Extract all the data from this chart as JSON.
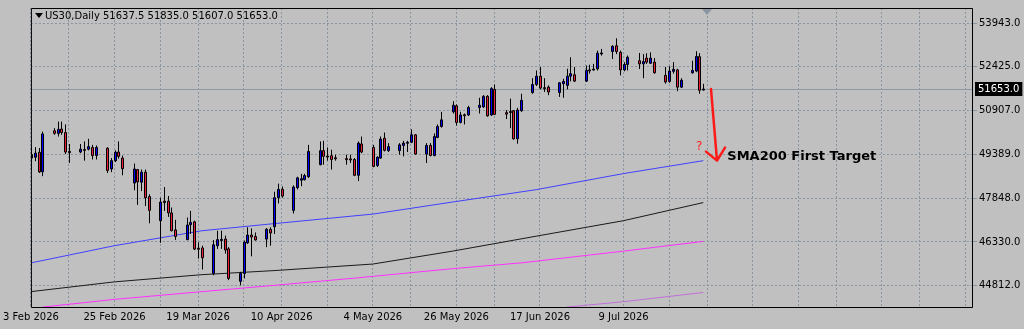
{
  "chart_data": {
    "type": "candlestick",
    "title": "US30,Daily 51637.5 51835.0 51607.0 51653.0",
    "x": [
      "2026-02-03",
      "2026-02-04",
      "2026-02-05",
      "2026-02-06",
      "2026-02-09",
      "2026-02-10",
      "2026-02-11",
      "2026-02-12",
      "2026-02-13",
      "2026-02-16",
      "2026-02-17",
      "2026-02-18",
      "2026-02-19",
      "2026-02-20",
      "2026-02-23",
      "2026-02-24",
      "2026-02-25",
      "2026-02-26",
      "2026-02-27",
      "2026-03-02",
      "2026-03-03",
      "2026-03-04",
      "2026-03-05",
      "2026-03-06",
      "2026-03-09",
      "2026-03-10",
      "2026-03-11",
      "2026-03-12",
      "2026-03-13",
      "2026-03-16",
      "2026-03-17",
      "2026-03-18",
      "2026-03-19",
      "2026-03-20",
      "2026-03-23",
      "2026-03-24",
      "2026-03-25",
      "2026-03-26",
      "2026-03-27",
      "2026-03-30",
      "2026-03-31",
      "2026-04-01",
      "2026-04-02",
      "2026-04-03",
      "2026-04-06",
      "2026-04-07",
      "2026-04-08",
      "2026-04-09",
      "2026-04-10",
      "2026-04-13",
      "2026-04-14",
      "2026-04-15",
      "2026-04-16",
      "2026-04-17",
      "2026-04-20",
      "2026-04-21",
      "2026-04-22",
      "2026-04-23",
      "2026-04-24",
      "2026-04-27",
      "2026-04-28",
      "2026-04-29",
      "2026-04-30",
      "2026-05-01",
      "2026-05-04",
      "2026-05-05",
      "2026-05-06",
      "2026-05-07",
      "2026-05-08",
      "2026-05-11",
      "2026-05-12",
      "2026-05-13",
      "2026-05-14",
      "2026-05-15",
      "2026-05-18",
      "2026-05-19",
      "2026-05-20",
      "2026-05-21",
      "2026-05-22",
      "2026-05-25",
      "2026-05-26",
      "2026-05-27",
      "2026-05-28",
      "2026-05-29",
      "2026-06-01",
      "2026-06-02",
      "2026-06-03",
      "2026-06-04",
      "2026-06-05",
      "2026-06-08",
      "2026-06-09",
      "2026-06-10",
      "2026-06-11",
      "2026-06-12",
      "2026-06-15",
      "2026-06-16",
      "2026-06-17",
      "2026-06-18",
      "2026-06-19",
      "2026-06-22",
      "2026-06-23",
      "2026-06-24",
      "2026-06-25",
      "2026-06-26",
      "2026-06-29",
      "2026-06-30",
      "2026-07-01",
      "2026-07-02",
      "2026-07-03",
      "2026-07-06",
      "2026-07-07",
      "2026-07-08",
      "2026-07-09",
      "2026-07-10",
      "2026-07-13",
      "2026-07-14",
      "2026-07-15",
      "2026-07-16",
      "2026-07-17",
      "2026-07-20",
      "2026-07-21",
      "2026-07-22",
      "2026-07-23",
      "2026-07-24",
      "2026-07-27",
      "2026-07-28",
      "2026-07-29",
      "2026-07-30"
    ],
    "ohlc": [
      [
        49370,
        49650,
        48820,
        49250
      ],
      [
        49280,
        49630,
        49140,
        49420
      ],
      [
        49450,
        49600,
        48730,
        48770
      ],
      [
        48770,
        50170,
        48620,
        50090
      ],
      [
        50200,
        50290,
        50060,
        50110
      ],
      [
        50110,
        50520,
        50000,
        50250
      ],
      [
        50260,
        50520,
        50060,
        50140
      ],
      [
        50140,
        50420,
        49390,
        49460
      ],
      [
        49480,
        49740,
        49080,
        49440
      ],
      [
        49460,
        49740,
        49420,
        49560
      ],
      [
        49550,
        49830,
        49160,
        49530
      ],
      [
        49560,
        49920,
        49520,
        49650
      ],
      [
        49620,
        49710,
        49200,
        49340
      ],
      [
        49340,
        49690,
        49200,
        49620
      ],
      [
        49590,
        49630,
        48730,
        48820
      ],
      [
        48870,
        49250,
        48760,
        49160
      ],
      [
        49160,
        49520,
        49110,
        49450
      ],
      [
        49460,
        49830,
        49230,
        49310
      ],
      [
        49250,
        49340,
        48650,
        48880
      ],
      [
        48380,
        49060,
        48130,
        48870
      ],
      [
        48850,
        48870,
        47620,
        48420
      ],
      [
        48410,
        48850,
        48100,
        48760
      ],
      [
        48760,
        48850,
        47580,
        47870
      ],
      [
        47910,
        47990,
        46980,
        47430
      ],
      [
        47070,
        47870,
        46300,
        47720
      ],
      [
        47750,
        48240,
        47410,
        47700
      ],
      [
        47750,
        47930,
        47200,
        47340
      ],
      [
        47340,
        47530,
        46700,
        46720
      ],
      [
        46750,
        47100,
        46400,
        46520
      ],
      [
        46410,
        47180,
        46390,
        46920
      ],
      [
        46930,
        47410,
        46610,
        47010
      ],
      [
        47030,
        47070,
        46050,
        46080
      ],
      [
        46110,
        46320,
        45750,
        46090
      ],
      [
        46120,
        46200,
        45370,
        45780
      ],
      [
        45230,
        46400,
        45170,
        46230
      ],
      [
        46200,
        46720,
        46090,
        46410
      ],
      [
        46380,
        46720,
        46090,
        46420
      ],
      [
        46430,
        46550,
        45920,
        46050
      ],
      [
        46090,
        46150,
        45000,
        45060
      ],
      [
        44960,
        45290,
        44820,
        45230
      ],
      [
        45230,
        46380,
        45060,
        46320
      ],
      [
        46300,
        46840,
        46260,
        46570
      ],
      [
        46570,
        46800,
        45830,
        46500
      ],
      [
        46520,
        46660,
        46380,
        46400
      ],
      [
        46430,
        46810,
        46150,
        46770
      ],
      [
        46770,
        46840,
        46200,
        46640
      ],
      [
        46860,
        48080,
        46610,
        47870
      ],
      [
        47870,
        48360,
        47670,
        48160
      ],
      [
        48160,
        48260,
        47870,
        47930
      ],
      [
        47430,
        48300,
        47320,
        48240
      ],
      [
        48220,
        48600,
        48160,
        48560
      ],
      [
        48480,
        48700,
        48270,
        48530
      ],
      [
        48500,
        48700,
        48470,
        48640
      ],
      [
        48600,
        49710,
        48560,
        49480
      ],
      [
        49020,
        49830,
        49000,
        49510
      ],
      [
        49510,
        49850,
        49020,
        49310
      ],
      [
        49320,
        49620,
        49160,
        49300
      ],
      [
        49330,
        49540,
        48850,
        49200
      ],
      [
        49260,
        49370,
        49160,
        49240
      ],
      [
        49230,
        49370,
        49020,
        49210
      ],
      [
        49220,
        49370,
        49080,
        49210
      ],
      [
        49200,
        49250,
        48620,
        48650
      ],
      [
        48650,
        49830,
        48450,
        49770
      ],
      [
        49740,
        50000,
        49420,
        49460
      ],
      [
        49620,
        49710,
        48930,
        48960
      ],
      [
        48990,
        49310,
        48940,
        49280
      ],
      [
        49250,
        50000,
        49230,
        49910
      ],
      [
        49940,
        50140,
        49480,
        49520
      ],
      [
        49510,
        49770,
        49460,
        49650
      ],
      [
        49510,
        49770,
        49370,
        49710
      ],
      [
        49690,
        49850,
        49310,
        49770
      ],
      [
        49780,
        49850,
        49460,
        49800
      ],
      [
        49800,
        50250,
        49770,
        50060
      ],
      [
        50060,
        50080,
        49370,
        49390
      ],
      [
        49390,
        49770,
        49080,
        49690
      ],
      [
        49690,
        49770,
        49310,
        49340
      ],
      [
        49340,
        50110,
        49310,
        50000
      ],
      [
        49970,
        50420,
        49940,
        50350
      ],
      [
        50350,
        50860,
        50310,
        50580
      ],
      [
        50860,
        51230,
        50800,
        51090
      ],
      [
        51070,
        51120,
        50380,
        50490
      ],
      [
        50490,
        50860,
        50460,
        50750
      ],
      [
        50760,
        50800,
        50420,
        50740
      ],
      [
        50750,
        51070,
        50720,
        51010
      ],
      [
        51010,
        51350,
        50800,
        51090
      ],
      [
        51030,
        51440,
        51000,
        51400
      ],
      [
        51400,
        51440,
        50690,
        50720
      ],
      [
        50750,
        51720,
        50720,
        51670
      ],
      [
        51640,
        51810,
        50750,
        50770
      ],
      [
        50830,
        50920,
        50610,
        50780
      ],
      [
        50870,
        51320,
        50290,
        50850
      ],
      [
        50900,
        50920,
        49890,
        49920
      ],
      [
        49920,
        51000,
        49750,
        50920
      ],
      [
        50900,
        51490,
        50860,
        51260
      ],
      [
        51530,
        52030,
        51490,
        51810
      ],
      [
        51810,
        52300,
        51760,
        52100
      ],
      [
        52100,
        52420,
        51640,
        51690
      ],
      [
        51700,
        52030,
        51550,
        51680
      ],
      [
        51720,
        51780,
        51440,
        51550
      ],
      [
        51530,
        51900,
        51380,
        51870
      ],
      [
        51840,
        52010,
        51350,
        51920
      ],
      [
        51780,
        52360,
        51640,
        52100
      ],
      [
        52100,
        52760,
        51920,
        52190
      ],
      [
        52150,
        52420,
        51900,
        51930
      ],
      [
        51930,
        52470,
        51900,
        52300
      ],
      [
        52320,
        52500,
        52190,
        52300
      ],
      [
        52320,
        52530,
        52300,
        52350
      ],
      [
        52360,
        52990,
        52300,
        52900
      ],
      [
        52890,
        53050,
        52820,
        52910
      ],
      [
        52960,
        53180,
        52700,
        53140
      ],
      [
        53160,
        53420,
        52870,
        52960
      ],
      [
        52930,
        52990,
        52130,
        52320
      ],
      [
        52320,
        52590,
        52270,
        52510
      ],
      [
        52510,
        52820,
        52300,
        52760
      ],
      [
        52640,
        52910,
        52350,
        52530
      ],
      [
        52530,
        52870,
        52030,
        52610
      ],
      [
        52730,
        52900,
        52530,
        52590
      ],
      [
        52550,
        52930,
        52530,
        52730
      ],
      [
        52590,
        52730,
        52190,
        52220
      ],
      [
        52130,
        52420,
        51840,
        51900
      ],
      [
        51920,
        52450,
        51870,
        52280
      ],
      [
        52270,
        52590,
        52190,
        52340
      ],
      [
        52320,
        52360,
        51580,
        51720
      ],
      [
        51720,
        52030,
        51690,
        51960
      ],
      [
        52220,
        52640,
        52190,
        52300
      ],
      [
        52280,
        52970,
        52240,
        52790
      ],
      [
        52780,
        52900,
        51490,
        51610
      ],
      [
        51637.5,
        51835,
        51607,
        51653
      ]
    ],
    "colors": [
      "#e8203a",
      "#0000ff",
      "#e8203a",
      "#0000ff",
      "#e8203a",
      "#0000ff",
      "#e8203a",
      "#e8203a",
      "#e8203a",
      "#0000ff",
      "#e8203a",
      "#0000ff",
      "#e8203a",
      "#0000ff",
      "#e8203a",
      "#0000ff",
      "#0000ff",
      "#e8203a",
      "#e8203a",
      "#0000ff",
      "#e8203a",
      "#0000ff",
      "#e8203a",
      "#e8203a",
      "#0000ff",
      "#e8203a",
      "#e8203a",
      "#e8203a",
      "#e8203a",
      "#0000ff",
      "#0000ff",
      "#e8203a",
      "#e8203a",
      "#e8203a",
      "#0000ff",
      "#0000ff",
      "#0000ff",
      "#e8203a",
      "#e8203a",
      "#0000ff",
      "#0000ff",
      "#0000ff",
      "#e8203a",
      "#e8203a",
      "#0000ff",
      "#e8203a",
      "#0000ff",
      "#0000ff",
      "#e8203a",
      "#0000ff",
      "#0000ff",
      "#0000ff",
      "#0000ff",
      "#0000ff",
      "#0000ff",
      "#e8203a",
      "#e8203a",
      "#e8203a",
      "#e8203a",
      "#e8203a",
      "#e8203a",
      "#e8203a",
      "#0000ff",
      "#e8203a",
      "#e8203a",
      "#0000ff",
      "#0000ff",
      "#e8203a",
      "#0000ff",
      "#0000ff",
      "#0000ff",
      "#0000ff",
      "#0000ff",
      "#e8203a",
      "#0000ff",
      "#e8203a",
      "#0000ff",
      "#0000ff",
      "#0000ff",
      "#0000ff",
      "#e8203a",
      "#0000ff",
      "#e8203a",
      "#0000ff",
      "#0000ff",
      "#0000ff",
      "#e8203a",
      "#0000ff",
      "#e8203a",
      "#e8203a",
      "#e8203a",
      "#e8203a",
      "#0000ff",
      "#0000ff",
      "#0000ff",
      "#0000ff",
      "#e8203a",
      "#e8203a",
      "#e8203a",
      "#0000ff",
      "#0000ff",
      "#0000ff",
      "#0000ff",
      "#e8203a",
      "#0000ff",
      "#e8203a",
      "#0000ff",
      "#0000ff",
      "#0000ff",
      "#0000ff",
      "#e8203a",
      "#e8203a",
      "#0000ff",
      "#0000ff",
      "#e8203a",
      "#0000ff",
      "#e8203a",
      "#0000ff",
      "#e8203a",
      "#e8203a",
      "#0000ff",
      "#0000ff",
      "#e8203a",
      "#0000ff",
      "#0000ff",
      "#0000ff",
      "#e8203a",
      "#0000ff"
    ],
    "series": [
      {
        "type": "line",
        "color": "#4040ff",
        "x": [
          "2026-02-03",
          "2026-02-25",
          "2026-03-20",
          "2026-04-09",
          "2026-05-04",
          "2026-05-25",
          "2026-06-16",
          "2026-07-09",
          "2026-07-30"
        ],
        "values": [
          45600,
          46200,
          46720,
          46980,
          47300,
          47720,
          48150,
          48710,
          49160
        ]
      },
      {
        "type": "line",
        "color": "#1a1a1a",
        "x": [
          "2026-02-03",
          "2026-02-25",
          "2026-03-20",
          "2026-04-09",
          "2026-05-04",
          "2026-05-25",
          "2026-06-16",
          "2026-07-09",
          "2026-07-30"
        ],
        "values": [
          44600,
          44940,
          45190,
          45340,
          45560,
          46010,
          46530,
          47070,
          47700
        ]
      },
      {
        "type": "line",
        "color": "#ff30ff",
        "x": [
          "2026-02-06",
          "2026-02-25",
          "2026-03-20",
          "2026-04-09",
          "2026-04-30",
          "2026-05-25",
          "2026-06-12",
          "2026-07-09",
          "2026-07-30"
        ],
        "values": [
          44060,
          44330,
          44600,
          44830,
          45080,
          45400,
          45600,
          46010,
          46350
        ]
      },
      {
        "type": "line",
        "color": "#c070d8",
        "x": [
          "2026-06-24",
          "2026-07-09",
          "2026-07-30"
        ],
        "values": [
          44060,
          44250,
          44570
        ]
      }
    ],
    "xlim": [
      "2026-02-03",
      "2026-10-09"
    ],
    "xticks": [
      {
        "value": "2026-02-03",
        "label": "3 Feb 2026"
      },
      {
        "value": "2026-02-13",
        "label": null
      },
      {
        "value": "2026-02-25",
        "label": "25 Feb 2026"
      },
      {
        "value": "2026-03-09",
        "label": null
      },
      {
        "value": "2026-03-19",
        "label": "19 Mar 2026"
      },
      {
        "value": "2026-03-31",
        "label": null
      },
      {
        "value": "2026-04-10",
        "label": "10 Apr 2026"
      },
      {
        "value": "2026-04-22",
        "label": null
      },
      {
        "value": "2026-05-04",
        "label": "4 May 2026"
      },
      {
        "value": "2026-05-14",
        "label": null
      },
      {
        "value": "2026-05-26",
        "label": "26 May 2026"
      },
      {
        "value": "2026-06-05",
        "label": null
      },
      {
        "value": "2026-06-17",
        "label": "17 Jun 2026"
      },
      {
        "value": "2026-06-29",
        "label": null
      },
      {
        "value": "2026-07-09",
        "label": "9 Jul 2026"
      },
      {
        "value": "2026-07-21",
        "label": null
      },
      {
        "value": "2026-07-31",
        "label": null
      },
      {
        "value": "2026-08-12",
        "label": null
      },
      {
        "value": "2026-08-24",
        "label": null
      },
      {
        "value": "2026-09-03",
        "label": null
      },
      {
        "value": "2026-09-15",
        "label": null
      },
      {
        "value": "2026-09-25",
        "label": null
      },
      {
        "value": "2026-10-07",
        "label": null
      }
    ],
    "ylim": [
      44030,
      54475
    ],
    "yticks": [
      {
        "value": 44812,
        "label": "44812.0"
      },
      {
        "value": 46330,
        "label": "46330.0"
      },
      {
        "value": 47848,
        "label": "47848.0"
      },
      {
        "value": 49389,
        "label": "49389.0"
      },
      {
        "value": 50907,
        "label": "50907.0"
      },
      {
        "value": 52425,
        "label": "52425.0"
      },
      {
        "value": 53943,
        "label": "53943.0"
      }
    ],
    "grid": true,
    "ref_lines": [
      {
        "axis": "y",
        "value": 51653,
        "label": "51653.0",
        "color": "#8c9aa8"
      }
    ],
    "annotations": [
      {
        "text": "SMA200 First Target",
        "x": "2026-07-30",
        "y": 49160
      },
      {
        "text": "?",
        "x": "2026-07-30",
        "y": 49160
      }
    ]
  }
}
